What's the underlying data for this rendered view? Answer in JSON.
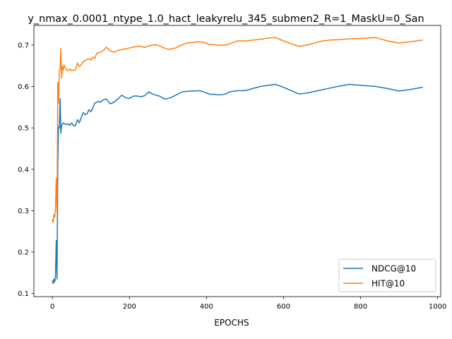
{
  "chart_data": {
    "type": "line",
    "title": "y_nmax_0.0001_ntype_1.0_hact_leakyrelu_345_submen2_R=1_MaskU=0_San",
    "xlabel": "EPOCHS",
    "ylabel": "",
    "xlim": [
      -48,
      1008
    ],
    "ylim": [
      0.0925,
      0.7475
    ],
    "xticks": [
      0,
      200,
      400,
      600,
      800,
      1000
    ],
    "yticks": [
      0.1,
      0.2,
      0.3,
      0.4,
      0.5,
      0.6,
      0.7
    ],
    "xtick_labels": [
      "0",
      "200",
      "400",
      "600",
      "800",
      "1000"
    ],
    "ytick_labels": [
      "0.1",
      "0.2",
      "0.3",
      "0.4",
      "0.5",
      "0.6",
      "0.7"
    ],
    "grid": false,
    "legend": "lower-right",
    "series": [
      {
        "name": "NDCG@10",
        "color": "#1f77b4",
        "x": [
          0,
          2,
          4,
          6,
          8,
          10,
          12,
          14,
          16,
          18,
          20,
          22,
          24,
          26,
          28,
          30,
          35,
          40,
          45,
          50,
          55,
          60,
          65,
          70,
          75,
          80,
          85,
          90,
          95,
          100,
          105,
          110,
          115,
          120,
          125,
          130,
          140,
          150,
          160,
          170,
          180,
          190,
          200,
          210,
          220,
          230,
          240,
          250,
          260,
          270,
          280,
          290,
          300,
          310,
          320,
          330,
          340,
          350,
          360,
          370,
          380,
          390,
          400,
          410,
          420,
          430,
          440,
          450,
          460,
          480,
          500,
          520,
          540,
          560,
          580,
          600,
          620,
          640,
          660,
          680,
          700,
          720,
          740,
          770,
          800,
          840,
          870,
          900,
          930,
          960
        ],
        "y": [
          0.13,
          0.124,
          0.135,
          0.128,
          0.14,
          0.228,
          0.135,
          0.412,
          0.503,
          0.5,
          0.571,
          0.487,
          0.505,
          0.509,
          0.512,
          0.511,
          0.508,
          0.51,
          0.506,
          0.512,
          0.505,
          0.506,
          0.52,
          0.512,
          0.525,
          0.537,
          0.532,
          0.534,
          0.544,
          0.539,
          0.548,
          0.56,
          0.562,
          0.564,
          0.562,
          0.567,
          0.57,
          0.558,
          0.562,
          0.57,
          0.579,
          0.573,
          0.571,
          0.577,
          0.577,
          0.575,
          0.578,
          0.587,
          0.582,
          0.579,
          0.576,
          0.57,
          0.571,
          0.574,
          0.579,
          0.584,
          0.588,
          0.588,
          0.589,
          0.589,
          0.59,
          0.588,
          0.584,
          0.581,
          0.581,
          0.58,
          0.58,
          0.582,
          0.587,
          0.59,
          0.59,
          0.595,
          0.6,
          0.603,
          0.605,
          0.598,
          0.59,
          0.582,
          0.584,
          0.588,
          0.592,
          0.596,
          0.6,
          0.605,
          0.603,
          0.6,
          0.595,
          0.589,
          0.593,
          0.598
        ]
      },
      {
        "name": "HIT@10",
        "color": "#ff7f0e",
        "x": [
          0,
          2,
          4,
          6,
          8,
          10,
          12,
          14,
          16,
          18,
          20,
          22,
          24,
          26,
          28,
          30,
          35,
          40,
          45,
          50,
          55,
          60,
          65,
          70,
          75,
          80,
          85,
          90,
          95,
          100,
          105,
          110,
          115,
          120,
          125,
          130,
          140,
          150,
          160,
          170,
          180,
          190,
          200,
          210,
          220,
          230,
          240,
          250,
          260,
          270,
          280,
          290,
          300,
          310,
          320,
          330,
          340,
          350,
          360,
          370,
          380,
          390,
          400,
          410,
          420,
          430,
          440,
          450,
          460,
          480,
          500,
          520,
          540,
          560,
          580,
          600,
          620,
          640,
          660,
          680,
          700,
          720,
          740,
          770,
          800,
          840,
          870,
          900,
          930,
          960
        ],
        "y": [
          0.278,
          0.272,
          0.291,
          0.285,
          0.305,
          0.378,
          0.295,
          0.61,
          0.56,
          0.638,
          0.64,
          0.692,
          0.62,
          0.648,
          0.64,
          0.652,
          0.642,
          0.638,
          0.643,
          0.638,
          0.64,
          0.64,
          0.657,
          0.648,
          0.652,
          0.66,
          0.663,
          0.665,
          0.667,
          0.664,
          0.671,
          0.668,
          0.68,
          0.682,
          0.683,
          0.685,
          0.695,
          0.686,
          0.683,
          0.687,
          0.689,
          0.691,
          0.693,
          0.695,
          0.697,
          0.697,
          0.694,
          0.698,
          0.7,
          0.701,
          0.697,
          0.693,
          0.69,
          0.691,
          0.693,
          0.698,
          0.702,
          0.705,
          0.706,
          0.707,
          0.708,
          0.707,
          0.704,
          0.701,
          0.701,
          0.7,
          0.7,
          0.7,
          0.703,
          0.71,
          0.71,
          0.712,
          0.714,
          0.717,
          0.718,
          0.71,
          0.703,
          0.697,
          0.7,
          0.705,
          0.71,
          0.712,
          0.713,
          0.715,
          0.716,
          0.718,
          0.71,
          0.705,
          0.708,
          0.712
        ]
      }
    ]
  }
}
